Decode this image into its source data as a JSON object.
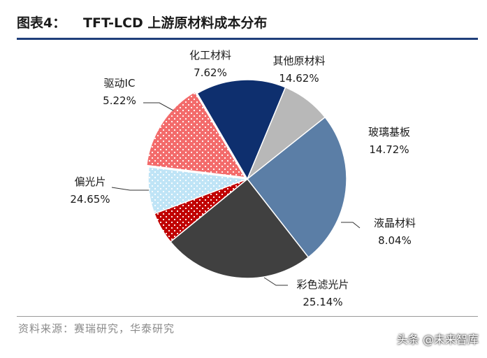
{
  "header": {
    "figure_label": "图表4：",
    "title": "TFT-LCD 上游原材料成本分布"
  },
  "chart_data": {
    "type": "pie",
    "title": "TFT-LCD 上游原材料成本分布",
    "slices": [
      {
        "name": "其他原材料",
        "value": 14.62,
        "display": "14.62%",
        "color": "#f36b6b",
        "pattern": "dots"
      },
      {
        "name": "玻璃基板",
        "value": 14.72,
        "display": "14.72%",
        "color": "#0e2f6e",
        "pattern": "none"
      },
      {
        "name": "液晶材料",
        "value": 8.04,
        "display": "8.04%",
        "color": "#b8b8b8",
        "pattern": "none"
      },
      {
        "name": "彩色滤光片",
        "value": 25.14,
        "display": "25.14%",
        "color": "#5b7ea6",
        "pattern": "none"
      },
      {
        "name": "偏光片",
        "value": 24.65,
        "display": "24.65%",
        "color": "#404040",
        "pattern": "none"
      },
      {
        "name": "驱动IC",
        "value": 5.22,
        "display": "5.22%",
        "color": "#c00000",
        "pattern": "dots"
      },
      {
        "name": "化工材料",
        "value": 7.62,
        "display": "7.62%",
        "color": "#bfe4f6",
        "pattern": "dots"
      }
    ]
  },
  "footer": {
    "source": "资料来源：赛瑞研究，华泰研究",
    "watermark": "头条 @未来智库"
  }
}
